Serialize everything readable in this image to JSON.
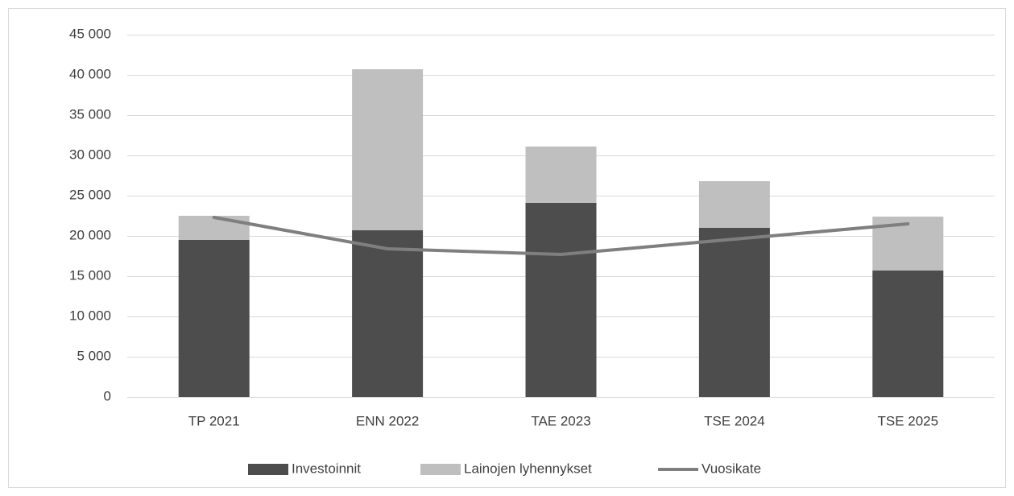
{
  "chart_data": {
    "type": "bar",
    "stacked": true,
    "categories": [
      "TP 2021",
      "ENN 2022",
      "TAE 2023",
      "TSE 2024",
      "TSE 2025"
    ],
    "series": [
      {
        "name": "Investoinnit",
        "type": "bar",
        "color": "#4d4d4d",
        "values": [
          19500,
          20700,
          24100,
          21000,
          15700
        ]
      },
      {
        "name": "Lainojen lyhennykset",
        "type": "bar",
        "color": "#bfbfbf",
        "values": [
          3000,
          20000,
          7000,
          5800,
          6700
        ]
      },
      {
        "name": "Vuosikate",
        "type": "line",
        "color": "#7f7f7f",
        "values": [
          22300,
          18400,
          17700,
          19600,
          21500
        ]
      }
    ],
    "ylim": [
      0,
      45000
    ],
    "yticks": [
      0,
      {
        "value": 5000,
        "label": "5 000"
      },
      {
        "value": 10000,
        "label": "10 000"
      },
      {
        "value": 15000,
        "label": "15 000"
      },
      {
        "value": 20000,
        "label": "20 000"
      },
      {
        "value": 25000,
        "label": "25 000"
      },
      {
        "value": 30000,
        "label": "30 000"
      },
      {
        "value": 35000,
        "label": "35 000"
      },
      {
        "value": 40000,
        "label": "40 000"
      },
      {
        "value": 45000,
        "label": "45 000"
      }
    ],
    "grid": true,
    "legend": "bottom"
  }
}
